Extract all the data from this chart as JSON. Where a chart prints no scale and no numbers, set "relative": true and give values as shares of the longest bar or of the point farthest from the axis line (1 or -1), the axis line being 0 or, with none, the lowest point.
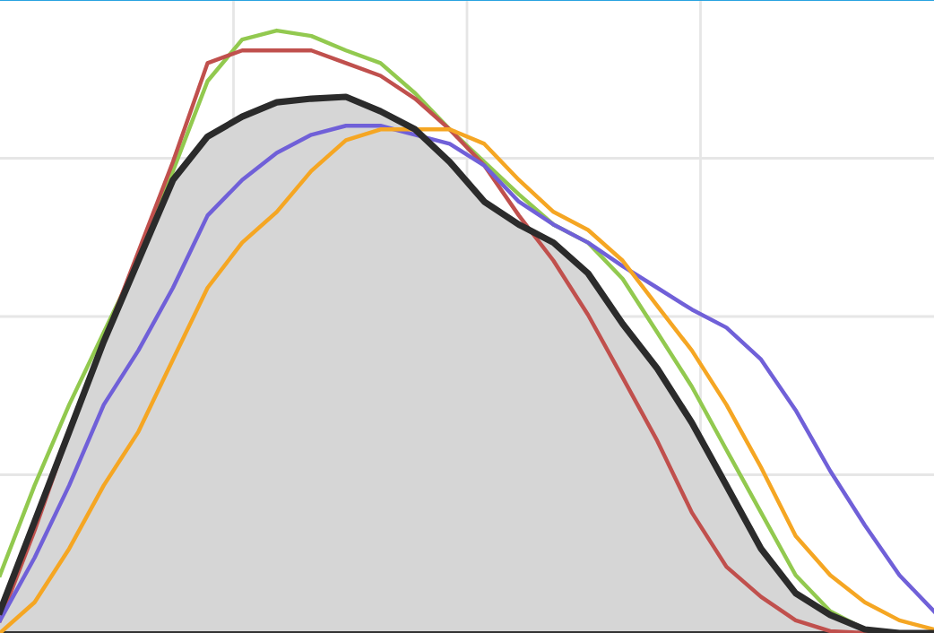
{
  "chart_data": {
    "type": "line",
    "relative": true,
    "grid": true,
    "tick_labels": false,
    "legend": false,
    "marker": "none",
    "line_style": "solid",
    "categories": [
      null,
      null,
      null,
      null,
      null,
      null,
      null,
      null,
      null,
      null,
      null,
      null,
      null,
      null,
      null,
      null,
      null,
      null,
      null,
      null,
      null,
      null,
      null,
      null,
      null,
      null,
      null,
      null
    ],
    "series": [
      {
        "type": "area",
        "color": "#2b2b2b",
        "values": [
          0.036,
          0.185,
          0.334,
          0.484,
          0.618,
          0.752,
          0.824,
          0.857,
          0.881,
          0.887,
          0.89,
          0.866,
          0.836,
          0.782,
          0.716,
          0.678,
          0.648,
          0.597,
          0.513,
          0.439,
          0.349,
          0.245,
          0.14,
          0.066,
          0.03,
          0.006,
          0,
          0
        ]
      },
      {
        "color": "#92c94f",
        "values": [
          0.096,
          0.245,
          0.379,
          0.499,
          0.618,
          0.767,
          0.916,
          0.985,
          1,
          0.991,
          0.967,
          0.946,
          0.896,
          0.836,
          0.782,
          0.728,
          0.678,
          0.648,
          0.588,
          0.499,
          0.409,
          0.304,
          0.2,
          0.096,
          0.036,
          0.006,
          0,
          0
        ]
      },
      {
        "color": "#c0504d",
        "values": [
          0.021,
          0.17,
          0.334,
          0.484,
          0.633,
          0.782,
          0.946,
          0.967,
          0.967,
          0.967,
          0.946,
          0.925,
          0.887,
          0.836,
          0.776,
          0.693,
          0.618,
          0.528,
          0.424,
          0.319,
          0.2,
          0.11,
          0.06,
          0.021,
          0.003,
          0,
          0,
          0
        ]
      },
      {
        "color": "#7060d8",
        "values": [
          0.021,
          0.125,
          0.245,
          0.379,
          0.469,
          0.573,
          0.693,
          0.752,
          0.797,
          0.827,
          0.842,
          0.842,
          0.827,
          0.812,
          0.776,
          0.716,
          0.678,
          0.648,
          0.609,
          0.573,
          0.537,
          0.507,
          0.454,
          0.37,
          0.269,
          0.179,
          0.096,
          0.036
        ]
      },
      {
        "color": "#f5a623",
        "values": [
          0,
          0.051,
          0.14,
          0.245,
          0.334,
          0.454,
          0.573,
          0.648,
          0.699,
          0.767,
          0.818,
          0.836,
          0.836,
          0.836,
          0.812,
          0.752,
          0.699,
          0.669,
          0.618,
          0.543,
          0.469,
          0.379,
          0.275,
          0.161,
          0.096,
          0.051,
          0.021,
          0.006
        ]
      }
    ]
  }
}
